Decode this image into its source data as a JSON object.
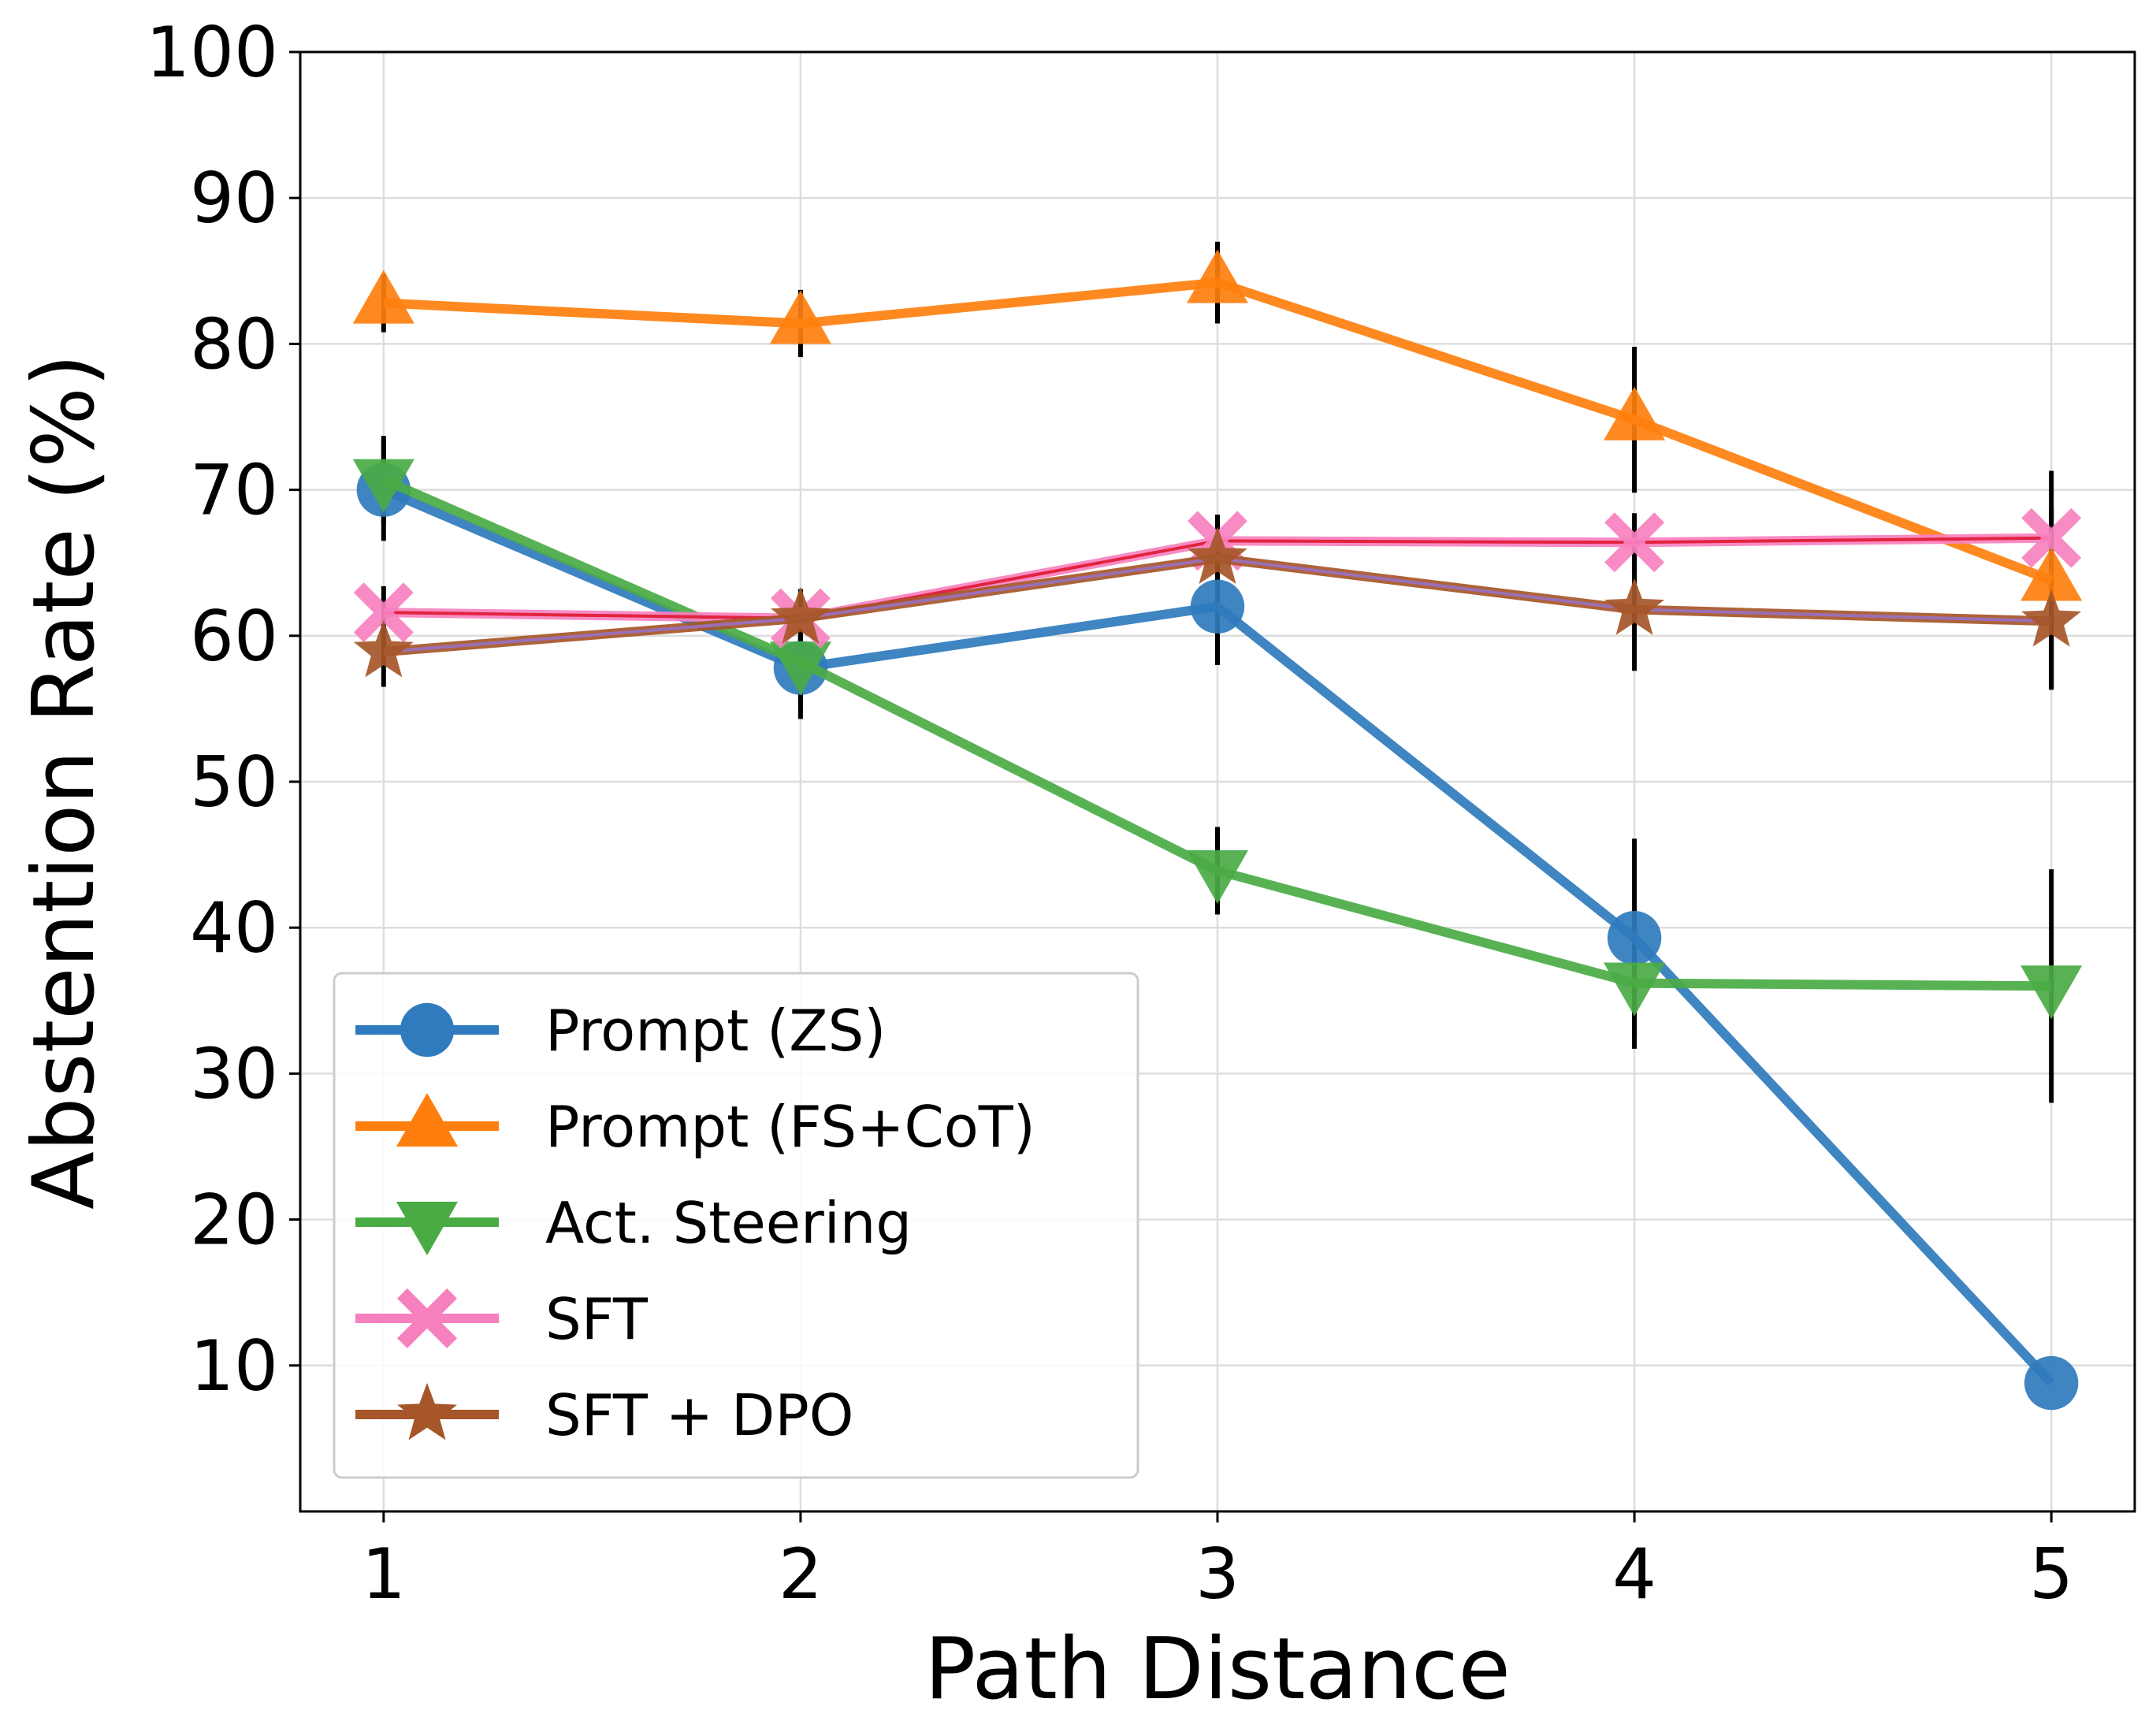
{
  "chart_data": {
    "type": "line",
    "title": "",
    "xlabel": "Path Distance",
    "ylabel": "Abstention Rate (%)",
    "x": [
      1,
      2,
      3,
      4,
      5
    ],
    "x_ticks": [
      "1",
      "2",
      "3",
      "4",
      "5"
    ],
    "xlim": [
      0.8,
      5.2
    ],
    "y_ticks": [
      "10",
      "20",
      "30",
      "40",
      "50",
      "60",
      "70",
      "80",
      "90",
      "100"
    ],
    "ylim": [
      0,
      100
    ],
    "grid": true,
    "legend_position": "lower-left",
    "series": [
      {
        "name": "Prompt (ZS)",
        "color": "#2f7bbd",
        "marker": "circle",
        "values": [
          70.0,
          57.8,
          62.0,
          39.3,
          8.8
        ],
        "errors": [
          3.5,
          3.5,
          4.0,
          6.8,
          0.0
        ]
      },
      {
        "name": "Prompt (FS+CoT)",
        "color": "#ff7f0e",
        "marker": "triangle-up",
        "values": [
          82.8,
          81.4,
          84.2,
          74.8,
          63.8
        ],
        "errors": [
          2.0,
          2.3,
          2.8,
          5.0,
          7.5
        ]
      },
      {
        "name": "Act. Steering",
        "color": "#4aab45",
        "marker": "triangle-down",
        "values": [
          70.7,
          58.2,
          43.9,
          36.2,
          36.0
        ],
        "errors": [
          3.0,
          3.0,
          3.0,
          4.5,
          8.0
        ]
      },
      {
        "name": "SFT",
        "color": "#f781bf",
        "line_color": "#e2233f",
        "marker": "x-cross",
        "values": [
          61.6,
          61.2,
          66.5,
          66.4,
          66.7
        ],
        "errors": [
          1.8,
          2.0,
          1.8,
          2.0,
          2.0
        ]
      },
      {
        "name": "SFT + DPO",
        "color": "#a65628",
        "line_color": "#9b6fb5",
        "marker": "star",
        "values": [
          58.9,
          61.2,
          65.3,
          61.8,
          61.0
        ],
        "errors": [
          2.4,
          2.0,
          3.0,
          4.2,
          4.6
        ]
      }
    ]
  }
}
